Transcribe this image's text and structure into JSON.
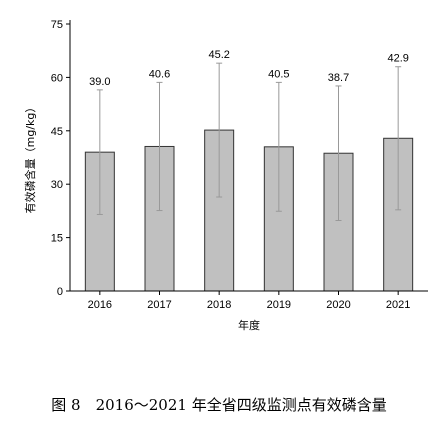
{
  "chart_data": {
    "type": "bar",
    "categories": [
      "2016",
      "2017",
      "2018",
      "2019",
      "2020",
      "2021"
    ],
    "values": [
      39.0,
      40.6,
      45.2,
      40.5,
      38.7,
      42.9
    ],
    "value_labels": [
      "39.0",
      "40.6",
      "45.2",
      "40.5",
      "38.7",
      "42.9"
    ],
    "error_upper": [
      56.5,
      58.6,
      64.0,
      58.6,
      57.6,
      63.0
    ],
    "error_lower": [
      21.5,
      22.6,
      26.4,
      22.4,
      19.8,
      22.8
    ],
    "xlabel": "年度",
    "ylabel": "有效磷含量（mg/kg）",
    "ylim": [
      0,
      75
    ],
    "yticks": [
      0,
      15,
      30,
      45,
      60,
      75
    ],
    "grid": false,
    "colors": {
      "bar_fill": "#c0c0c0",
      "bar_stroke": "#333333",
      "error_bar": "#999999"
    }
  },
  "caption": "图 8　2016～2021 年全省四级监测点有效磷含量"
}
